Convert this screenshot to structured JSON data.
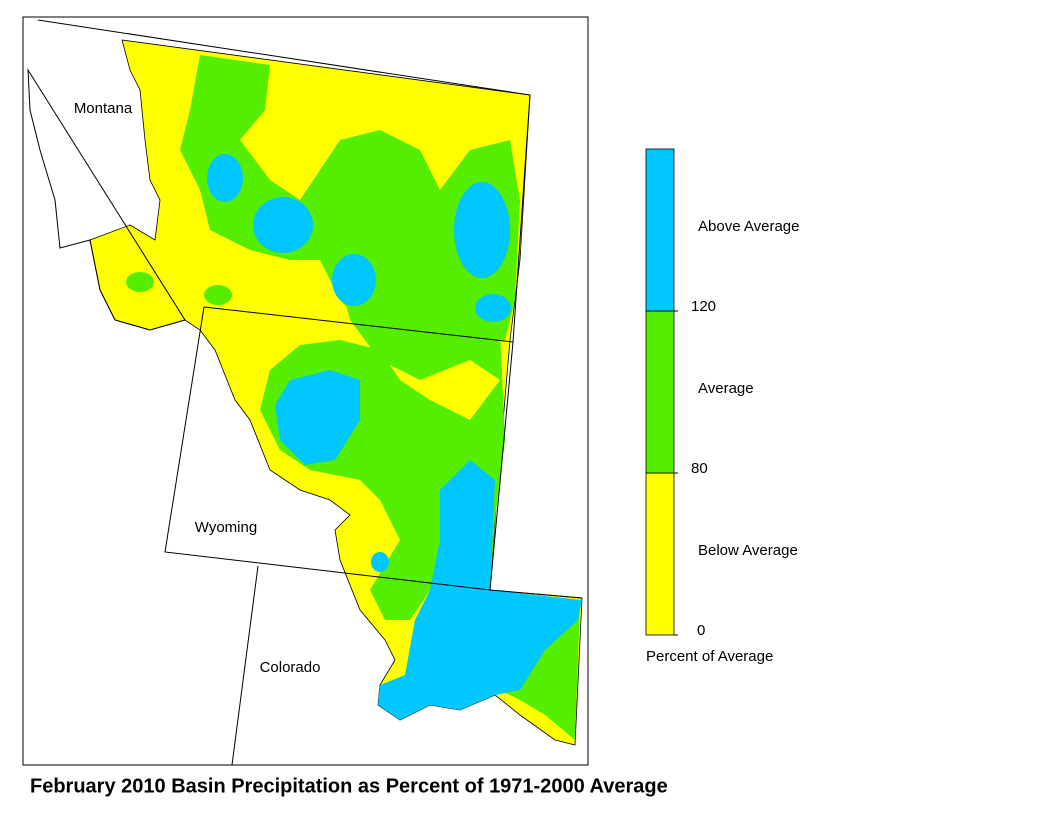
{
  "map": {
    "states": [
      "Montana",
      "Wyoming",
      "Colorado"
    ],
    "legend": {
      "title": "Percent of Average",
      "classes": [
        {
          "label": "Below Average",
          "color": "#ffff00"
        },
        {
          "label": "Average",
          "color": "#55ee00"
        },
        {
          "label": "Above Average",
          "color": "#00c8ff"
        }
      ],
      "breaks": [
        0,
        80,
        120
      ]
    },
    "caption": "February 2010 Basin Precipitation as Percent of 1971-2000 Average"
  }
}
